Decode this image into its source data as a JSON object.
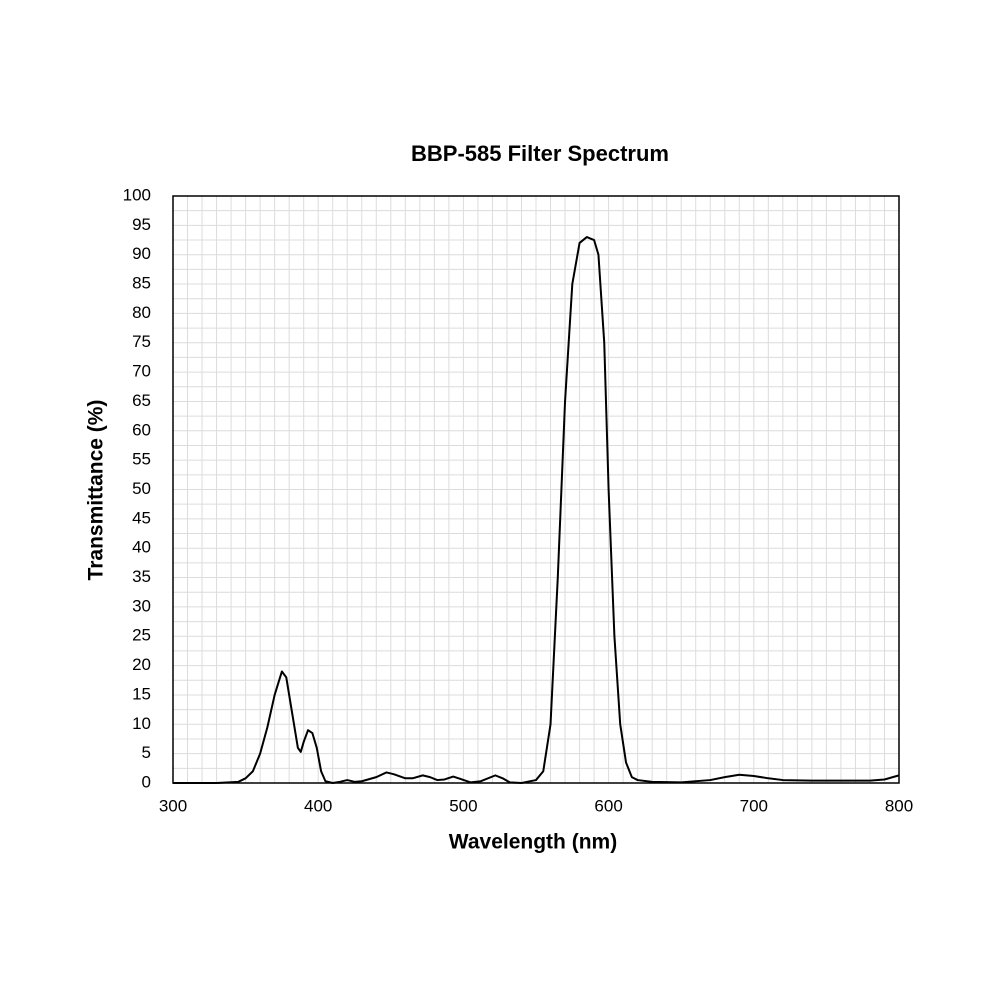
{
  "chart_data": {
    "type": "line",
    "title": "BBP-585 Filter Spectrum",
    "x_label": "Wavelength (nm)",
    "y_label": "Transmittance (%)",
    "x": [
      300,
      330,
      345,
      350,
      355,
      360,
      365,
      370,
      375,
      378,
      382,
      386,
      388,
      390,
      393,
      396,
      399,
      402,
      405,
      410,
      415,
      420,
      425,
      430,
      440,
      447,
      452,
      460,
      465,
      472,
      477,
      482,
      487,
      493,
      498,
      505,
      512,
      522,
      527,
      532,
      540,
      550,
      555,
      560,
      565,
      570,
      575,
      580,
      585,
      590,
      593,
      597,
      600,
      604,
      608,
      612,
      616,
      620,
      630,
      650,
      670,
      680,
      690,
      700,
      710,
      720,
      740,
      760,
      780,
      790,
      800
    ],
    "series": [
      {
        "color": "#000000",
        "values": [
          0,
          0,
          0.2,
          0.8,
          2,
          5,
          9.5,
          15,
          19,
          18,
          12,
          6,
          5.3,
          7,
          9,
          8.5,
          6,
          2,
          0.3,
          0,
          0.2,
          0.5,
          0.2,
          0.3,
          1,
          1.8,
          1.5,
          0.8,
          0.8,
          1.3,
          1,
          0.5,
          0.6,
          1.1,
          0.7,
          0.1,
          0.3,
          1.3,
          0.8,
          0.1,
          0,
          0.5,
          2,
          10,
          35,
          65,
          85,
          92,
          93,
          92.5,
          90,
          75,
          50,
          25,
          10,
          3.5,
          1,
          0.5,
          0.2,
          0.1,
          0.5,
          1,
          1.4,
          1.2,
          0.8,
          0.5,
          0.4,
          0.4,
          0.4,
          0.6,
          1.3
        ]
      }
    ],
    "xlim": [
      300,
      800
    ],
    "xticks": [
      300,
      400,
      500,
      600,
      700,
      800
    ],
    "ylim": [
      0,
      100
    ],
    "yticks": [
      0,
      5,
      10,
      15,
      20,
      25,
      30,
      35,
      40,
      45,
      50,
      55,
      60,
      65,
      70,
      75,
      80,
      85,
      90,
      95,
      100
    ],
    "grid": true,
    "xgrid": [
      310,
      320,
      330,
      340,
      350,
      360,
      370,
      380,
      390,
      410,
      420,
      430,
      440,
      450,
      460,
      470,
      480,
      490,
      510,
      520,
      530,
      540,
      550,
      560,
      570,
      580,
      590,
      610,
      620,
      630,
      640,
      650,
      660,
      670,
      680,
      690,
      710,
      720,
      730,
      740,
      750,
      760,
      770,
      780,
      790
    ],
    "ygrid": [
      2.5,
      7.5,
      12.5,
      17.5,
      22.5,
      27.5,
      32.5,
      37.5,
      42.5,
      47.5,
      52.5,
      57.5,
      62.5,
      67.5,
      72.5,
      77.5,
      82.5,
      87.5,
      92.5,
      97.5
    ]
  }
}
